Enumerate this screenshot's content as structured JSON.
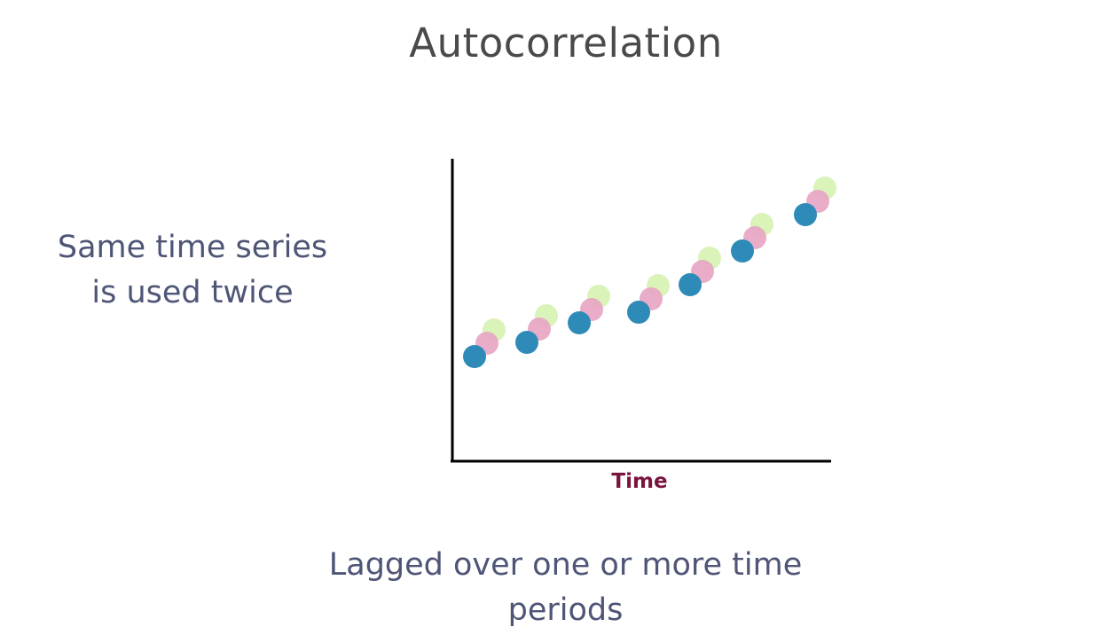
{
  "title": "Autocorrelation",
  "side_text": "Same time series is used twice",
  "bottom_text": "Lagged over one or more time periods",
  "chart_data": {
    "type": "scatter",
    "xlabel": "Time",
    "ylabel": "",
    "points_per_series": 7,
    "series_colors": {
      "original": "#2e8bb7",
      "lag1": "#e7a4c4",
      "lag2": "#d8f2b4"
    }
  },
  "colors": {
    "title": "#4a4a4a",
    "body_text": "#4e5576",
    "axis_label": "#7a1540",
    "axis": "#000000"
  }
}
